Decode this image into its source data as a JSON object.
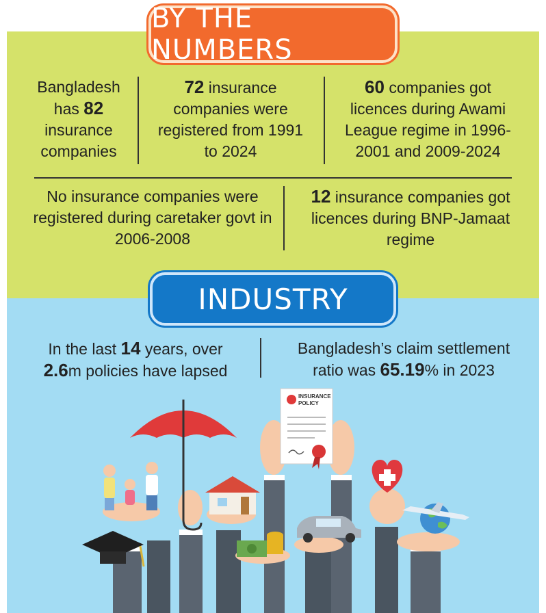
{
  "sections": {
    "numbers_title": "BY THE NUMBERS",
    "industry_title": "INDUSTRY"
  },
  "numbers": {
    "s1": {
      "a": "Bangladesh has ",
      "b": "82",
      "c": " insurance companies"
    },
    "s2": {
      "a": "",
      "b": "72",
      "c": " insurance companies were registered from 1991 to 2024"
    },
    "s3": {
      "a": "",
      "b": "60",
      "c": " companies got licences during Awami League regime in 1996-2001 and 2009-2024"
    },
    "s4": {
      "a": "No insurance companies were registered during caretaker govt in 2006-2008"
    },
    "s5": {
      "a": "",
      "b": "12",
      "c": " insurance companies got licences during BNP-Jamaat regime"
    }
  },
  "industry": {
    "s6": {
      "a": "In the last ",
      "b": "14",
      "c": " years, over ",
      "d": "2.6",
      "e": "m policies have lapsed"
    },
    "s7": {
      "a": "Bangladesh’s claim settlement ratio was ",
      "b": "65.19",
      "c": "% in 2023"
    }
  },
  "illustration": {
    "policy_line1": "INSURANCE",
    "policy_line2": "POLICY"
  },
  "colors": {
    "green_panel": "#d5e26a",
    "blue_panel": "#a3dcf3",
    "orange_banner": "#f26a2d",
    "blue_banner": "#1478c8"
  }
}
